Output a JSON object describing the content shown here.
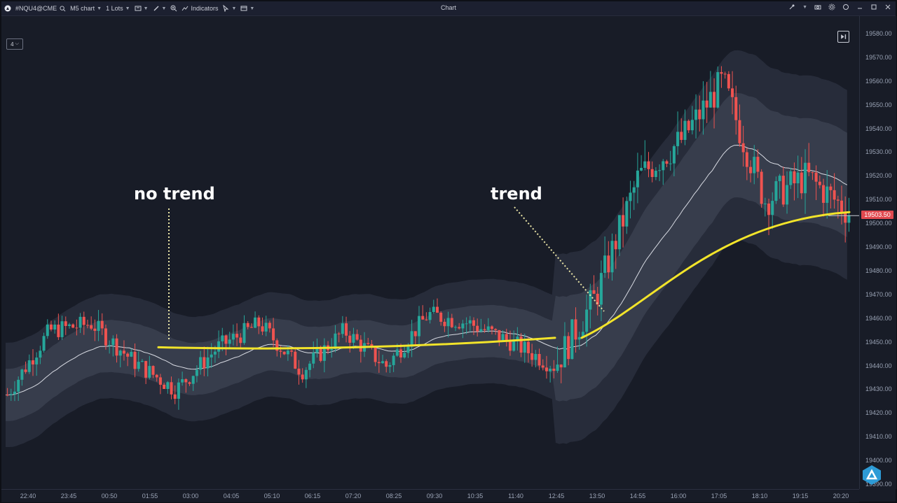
{
  "toolbar": {
    "symbol": "#NQU4@CME",
    "chart_type": "M5 chart",
    "lots": "1 Lots",
    "indicators_label": "Indicators",
    "title": "Chart"
  },
  "zoom_selector": {
    "value": "4"
  },
  "current_price": "19503.50",
  "annotations": {
    "no_trend": "no trend",
    "trend": "trend"
  },
  "price_axis": [
    "19580.00",
    "19570.00",
    "19560.00",
    "19550.00",
    "19540.00",
    "19530.00",
    "19520.00",
    "19510.00",
    "19500.00",
    "19490.00",
    "19480.00",
    "19470.00",
    "19460.00",
    "19450.00",
    "19440.00",
    "19430.00",
    "19420.00",
    "19410.00",
    "19400.00",
    "19390.00"
  ],
  "time_axis": [
    "22:40",
    "23:45",
    "00:50",
    "01:55",
    "03:00",
    "04:05",
    "05:10",
    "06:15",
    "07:20",
    "08:25",
    "09:30",
    "10:35",
    "11:40",
    "12:45",
    "13:50",
    "14:55",
    "16:00",
    "17:05",
    "18:10",
    "19:15",
    "20:20"
  ],
  "colors": {
    "background": "#181c27",
    "bull_candle": "#26a69a",
    "bear_candle": "#ef5350",
    "highlight_line": "#f2e42a",
    "band_fill": "#3a3f4f",
    "price_tag": "#e0494f"
  },
  "chart_data": {
    "type": "candlestick",
    "instrument": "#NQU4@CME",
    "timeframe": "M5",
    "ylim": [
      19390,
      19585
    ],
    "current_price": 19503.5,
    "price_anchors": {
      "x": [
        "22:40",
        "23:45",
        "00:50",
        "01:55",
        "03:00",
        "04:05",
        "05:10",
        "06:15",
        "07:20",
        "08:25",
        "09:30",
        "10:35",
        "11:40",
        "12:45",
        "13:50",
        "14:55",
        "16:00",
        "17:05",
        "18:10",
        "19:15",
        "20:20"
      ],
      "close": [
        19428,
        19455,
        19458,
        19442,
        19430,
        19448,
        19458,
        19438,
        19455,
        19440,
        19462,
        19458,
        19450,
        19440,
        19470,
        19520,
        19535,
        19560,
        19510,
        19520,
        19505
      ]
    },
    "highlight_trend_line": {
      "no_trend_segment": {
        "x": [
          "01:55",
          "12:45"
        ],
        "y": [
          19448,
          19452
        ]
      },
      "trend_segment": {
        "x": [
          "13:50",
          "20:20"
        ],
        "y": [
          19452,
          19505
        ]
      }
    }
  }
}
